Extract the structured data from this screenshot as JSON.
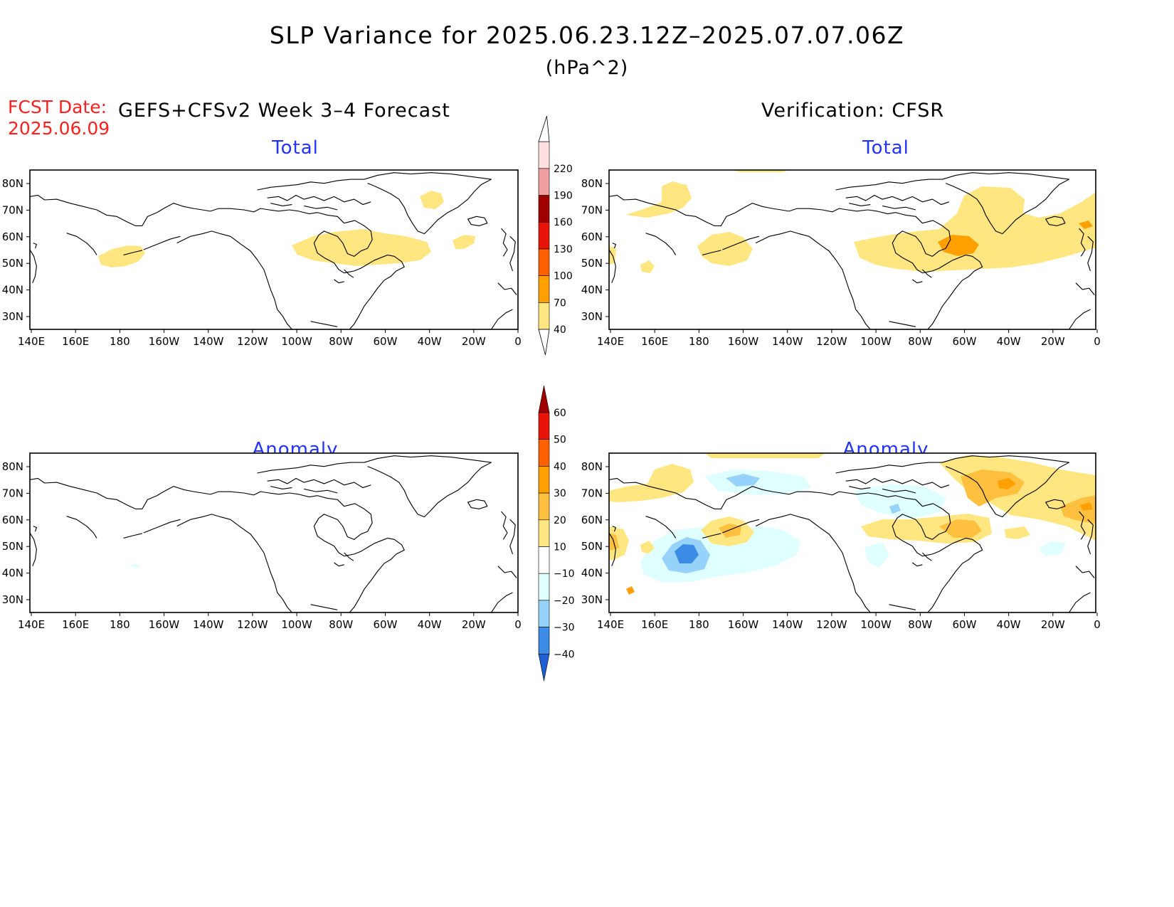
{
  "title": "SLP Variance for 2025.06.23.12Z–2025.07.07.06Z",
  "units": "(hPa^2)",
  "fcst_label": "FCST Date:",
  "fcst_date": "2025.06.09",
  "left_header": "GEFS+CFSv2 Week 3–4 Forecast",
  "right_header": "Verification: CFSR",
  "panels": {
    "forecast_total": "Total",
    "verification_total": "Total",
    "forecast_anomaly": "Anomaly",
    "verification_anomaly": "Anomaly"
  },
  "lat_labels": [
    "80N",
    "70N",
    "60N",
    "50N",
    "40N",
    "30N"
  ],
  "lon_labels": [
    "140E",
    "160E",
    "180",
    "160W",
    "140W",
    "120W",
    "100W",
    "80W",
    "60W",
    "40W",
    "20W",
    "0"
  ],
  "total_colorbar": {
    "levels": [
      "40",
      "70",
      "100",
      "130",
      "160",
      "190",
      "220"
    ],
    "colors": [
      "#ffe680",
      "#ffa000",
      "#ff6000",
      "#e81408",
      "#a00000",
      "#f0a0a0",
      "#ffe0e0"
    ]
  },
  "anomaly_colorbar": {
    "levels": [
      "60",
      "50",
      "40",
      "30",
      "20",
      "10",
      "−10",
      "−20",
      "−30",
      "−40"
    ],
    "colors_top_to_bottom": [
      "#a00000",
      "#e81408",
      "#ff6000",
      "#ffa000",
      "#ffc040",
      "#ffe680",
      "#ffffff",
      "#e0ffff",
      "#96d2fa",
      "#3c8ce6",
      "#1e5fd2"
    ]
  },
  "shading": {
    "low_positive": "#fff5b0",
    "medium_positive": "#ffe680",
    "high_positive": "#ffc040",
    "strong_positive": "#ffa000",
    "light_negative": "#e0ffff",
    "medium_negative": "#96d2fa",
    "strong_negative": "#3c8ce6"
  }
}
